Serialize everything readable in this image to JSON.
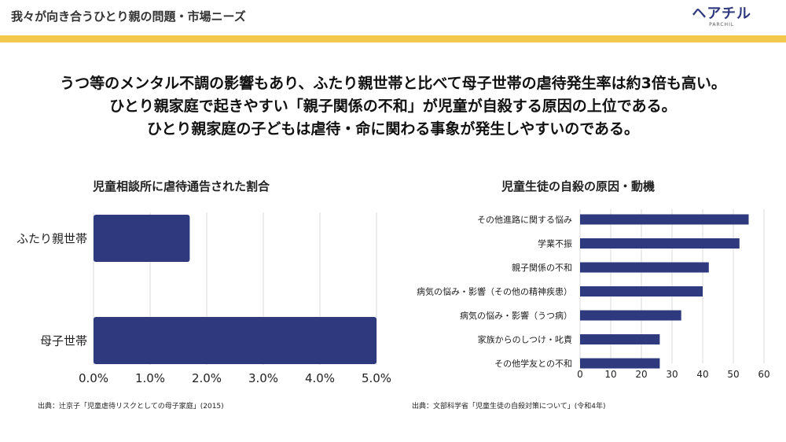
{
  "header": {
    "title": "我々が向き合うひとり親の問題・市場ニーズ",
    "logo_mark": "ヘアチル",
    "logo_sub": "PARCHIL"
  },
  "headline": [
    "うつ等のメンタル不調の影響もあり、ふたり親世帯と比べて母子世帯の虐待発生率は約3倍も高い。",
    "ひとり親家庭で起きやすい「親子関係の不和」が児童が自殺する原因の上位である。",
    "ひとり親家庭の子どもは虐待・命に関わる事象が発生しやすいのである。"
  ],
  "colors": {
    "accent": "#f2c94c",
    "bar": "#2f3a7e",
    "grid": "#d9d9d9"
  },
  "chart_data": [
    {
      "type": "bar",
      "orientation": "horizontal",
      "title": "児童相談所に虐待通告された割合",
      "categories": [
        "ふたり親世帯",
        "母子世帯"
      ],
      "values": [
        1.7,
        5.0
      ],
      "xlim": [
        0,
        5
      ],
      "ticks": [
        "0.0%",
        "1.0%",
        "2.0%",
        "3.0%",
        "4.0%",
        "5.0%"
      ],
      "grid": true,
      "source": "出典：辻京子「児童虐待リスクとしての母子家庭」(2015)"
    },
    {
      "type": "bar",
      "orientation": "horizontal",
      "title": "児童生徒の自殺の原因・動機",
      "categories": [
        "その他進路に関する悩み",
        "学業不振",
        "親子関係の不和",
        "病気の悩み・影響（その他の精神疾患）",
        "病気の悩み・影響（うつ病）",
        "家族からのしつけ・叱責",
        "その他学友との不和"
      ],
      "values": [
        55,
        52,
        42,
        40,
        33,
        26,
        26
      ],
      "xlim": [
        0,
        60
      ],
      "ticks": [
        "0",
        "10",
        "20",
        "30",
        "40",
        "50",
        "60"
      ],
      "grid": true,
      "source": "出典：文部科学省「児童生徒の自殺対策について」(令和4年)"
    }
  ]
}
